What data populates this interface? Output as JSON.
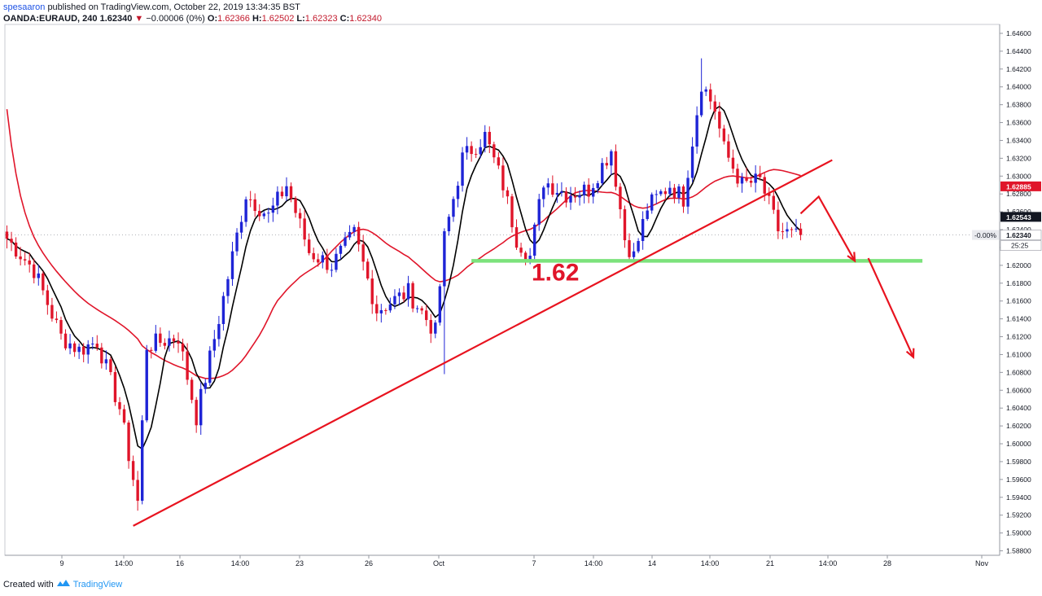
{
  "header": {
    "author": "spesaaron",
    "published_text": "published on TradingView.com, October 22, 2019 13:34:35 BST",
    "symbol": "OANDA:EURAUD, 240",
    "last": "1.62340",
    "change_arrow": "▼",
    "change": "−0.00006 (0%)",
    "o_label": "O:",
    "o_value": "1.62366",
    "h_label": "H:",
    "h_value": "1.62502",
    "l_label": "L:",
    "l_value": "1.62323",
    "c_label": "C:",
    "c_value": "1.62340"
  },
  "footer": {
    "created_with": "Created with",
    "brand": "TradingView",
    "logo_icon": "tradingview-logo-icon"
  },
  "colors": {
    "bull": "#1e24d6",
    "bear": "#e0152a",
    "ma_fast": "#000000",
    "ma_slow": "#e0152a",
    "trendline": "#e8131f",
    "support": "#7ce27c",
    "arrow": "#e8131f",
    "axis": "#131722"
  },
  "chart_data": {
    "type": "candlestick",
    "symbol": "OANDA:EURAUD",
    "timeframe": "240",
    "price_ticks": [
      "1.64600",
      "1.64400",
      "1.64200",
      "1.64000",
      "1.63800",
      "1.63600",
      "1.63400",
      "1.63200",
      "1.63000",
      "1.62800",
      "1.62600",
      "1.62400",
      "1.62200",
      "1.62000",
      "1.61800",
      "1.61600",
      "1.61400",
      "1.61200",
      "1.61000",
      "1.60800",
      "1.60600",
      "1.60400",
      "1.60200",
      "1.60000",
      "1.59800",
      "1.59600",
      "1.59400",
      "1.59200",
      "1.59000",
      "1.58800"
    ],
    "time_ticks": [
      "9",
      "14:00",
      "16",
      "14:00",
      "23",
      "26",
      "Oct",
      "7",
      "14:00",
      "14",
      "14:00",
      "21",
      "14:00",
      "28",
      "Nov"
    ],
    "price_labels": [
      {
        "value": 1.62885,
        "text": "1.62885",
        "style": "ma-red"
      },
      {
        "value": 1.62543,
        "text": "1.62543",
        "style": "ma-black"
      },
      {
        "value": 1.6234,
        "text": "1.62340",
        "style": "last"
      }
    ],
    "last_change_text": "-0.00%",
    "countdown_text": "25:25",
    "annotation_text": "1.62",
    "support_level": 1.6205,
    "trendline": {
      "from": {
        "idx": 28,
        "price": 1.5908
      },
      "to": {
        "idx": 183,
        "price": 1.6318
      }
    },
    "arrows": [
      {
        "from": {
          "idx": 176,
          "price": 1.6258
        },
        "via": {
          "idx": 180,
          "price": 1.6277
        },
        "to": {
          "idx": 188,
          "price": 1.6205
        }
      },
      {
        "from": {
          "idx": 191,
          "price": 1.6208
        },
        "to": {
          "idx": 201,
          "price": 1.6097
        }
      }
    ],
    "pivots": [
      [
        0,
        1.623
      ],
      [
        6,
        1.6195
      ],
      [
        12,
        1.612
      ],
      [
        16,
        1.6105
      ],
      [
        20,
        1.6115
      ],
      [
        25,
        1.604
      ],
      [
        29,
        1.5935
      ],
      [
        31,
        1.611
      ],
      [
        38,
        1.612
      ],
      [
        42,
        1.603
      ],
      [
        47,
        1.614
      ],
      [
        53,
        1.628
      ],
      [
        58,
        1.6255
      ],
      [
        62,
        1.629
      ],
      [
        67,
        1.6215
      ],
      [
        72,
        1.62
      ],
      [
        77,
        1.6235
      ],
      [
        82,
        1.615
      ],
      [
        89,
        1.617
      ],
      [
        95,
        1.6125
      ],
      [
        97,
        1.623
      ],
      [
        101,
        1.632
      ],
      [
        106,
        1.6345
      ],
      [
        110,
        1.629
      ],
      [
        113,
        1.623
      ],
      [
        116,
        1.621
      ],
      [
        119,
        1.6295
      ],
      [
        124,
        1.628
      ],
      [
        129,
        1.6285
      ],
      [
        134,
        1.633
      ],
      [
        137,
        1.623
      ],
      [
        139,
        1.621
      ],
      [
        142,
        1.6265
      ],
      [
        147,
        1.629
      ],
      [
        150,
        1.6275
      ],
      [
        154,
        1.6405
      ],
      [
        157,
        1.6375
      ],
      [
        159,
        1.633
      ],
      [
        163,
        1.629
      ],
      [
        167,
        1.6295
      ],
      [
        171,
        1.624
      ],
      [
        175,
        1.6232
      ],
      [
        176,
        1.6234
      ]
    ]
  }
}
